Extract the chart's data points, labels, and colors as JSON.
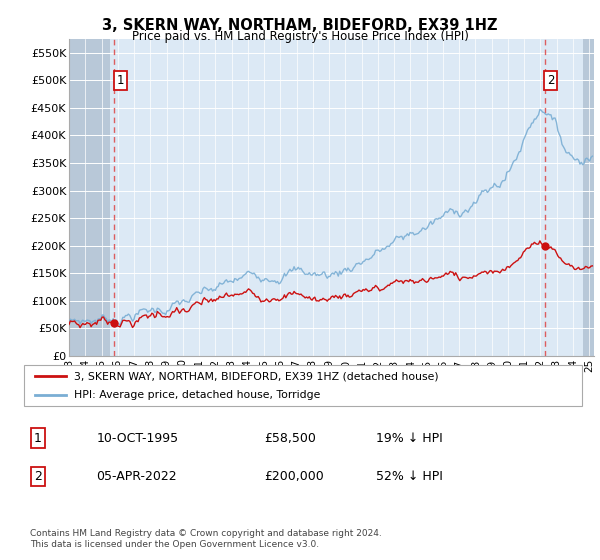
{
  "title": "3, SKERN WAY, NORTHAM, BIDEFORD, EX39 1HZ",
  "subtitle": "Price paid vs. HM Land Registry's House Price Index (HPI)",
  "ylim": [
    0,
    575000
  ],
  "yticks": [
    0,
    50000,
    100000,
    150000,
    200000,
    250000,
    300000,
    350000,
    400000,
    450000,
    500000,
    550000
  ],
  "ytick_labels": [
    "£0",
    "£50K",
    "£100K",
    "£150K",
    "£200K",
    "£250K",
    "£300K",
    "£350K",
    "£400K",
    "£450K",
    "£500K",
    "£550K"
  ],
  "sale1_date_num": 1995.78,
  "sale1_price": 58500,
  "sale2_date_num": 2022.26,
  "sale2_price": 200000,
  "hpi_color": "#7aaed4",
  "price_color": "#cc1111",
  "annotation1_label": "1",
  "annotation2_label": "2",
  "legend_property_label": "3, SKERN WAY, NORTHAM, BIDEFORD, EX39 1HZ (detached house)",
  "legend_hpi_label": "HPI: Average price, detached house, Torridge",
  "table_row1": [
    "1",
    "10-OCT-1995",
    "£58,500",
    "19% ↓ HPI"
  ],
  "table_row2": [
    "2",
    "05-APR-2022",
    "£200,000",
    "52% ↓ HPI"
  ],
  "footer": "Contains HM Land Registry data © Crown copyright and database right 2024.\nThis data is licensed under the Open Government Licence v3.0.",
  "bg_color": "#dce9f5",
  "hatch_color": "#b8c8d8",
  "grid_color": "#ffffff",
  "vline_color": "#dd4444",
  "anno_y": 500000,
  "xlim_left": 1993.0,
  "xlim_right": 2025.3,
  "hatch_end": 1995.5,
  "hatch_start_right": 2024.6
}
